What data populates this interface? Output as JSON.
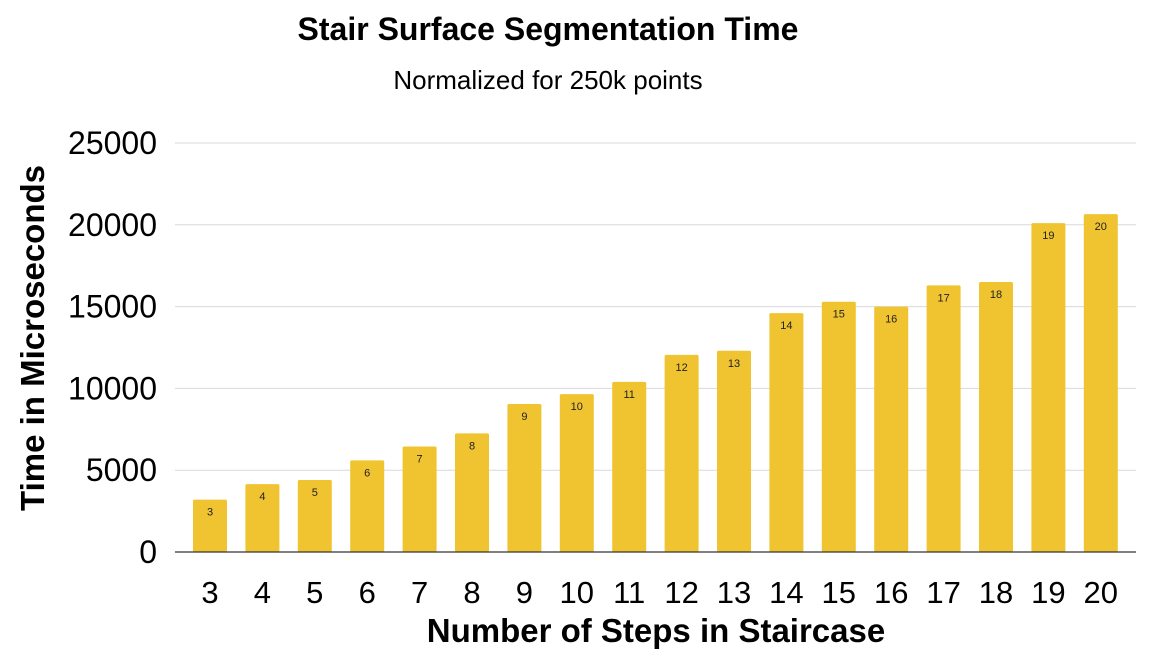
{
  "chart_data": {
    "type": "bar",
    "title": "Stair Surface Segmentation Time",
    "subtitle": "Normalized for 250k points",
    "xlabel": "Number of Steps in Staircase",
    "ylabel": "Time in Microseconds",
    "ylim": [
      0,
      25000
    ],
    "yticks": [
      "0",
      "5000",
      "10000",
      "15000",
      "20000",
      "25000"
    ],
    "categories": [
      "3",
      "4",
      "5",
      "6",
      "7",
      "8",
      "9",
      "10",
      "11",
      "12",
      "13",
      "14",
      "15",
      "16",
      "17",
      "18",
      "19",
      "20"
    ],
    "values": [
      3200,
      4150,
      4400,
      5600,
      6450,
      7250,
      9050,
      9650,
      10400,
      12050,
      12300,
      14600,
      15300,
      15000,
      16300,
      16500,
      20100,
      20650
    ],
    "data_labels": [
      "3",
      "4",
      "5",
      "6",
      "7",
      "8",
      "9",
      "10",
      "11",
      "12",
      "13",
      "14",
      "15",
      "16",
      "17",
      "18",
      "19",
      "20"
    ],
    "bar_color": "#F0C431",
    "grid": true,
    "legend": "none"
  }
}
